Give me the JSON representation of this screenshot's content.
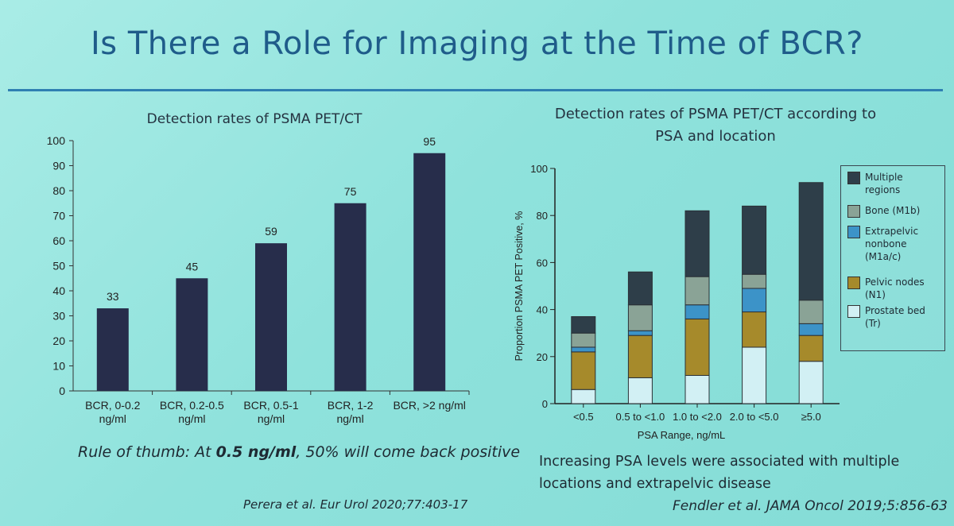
{
  "slide": {
    "title": "Is There a Role for Imaging at the Time of BCR?",
    "rule_of_thumb_prefix": "Rule of thumb: At ",
    "rule_of_thumb_bold": "0.5 ng/ml",
    "rule_of_thumb_suffix": ", 50% will come back positive",
    "right_note": "Increasing PSA levels were associated with multiple locations and extrapelvic disease",
    "left_citation": "Perera et al. Eur Urol 2020;77:403-17",
    "right_citation": "Fendler et al. JAMA Oncol 2019;5:856-63"
  },
  "chart_data": [
    {
      "type": "bar",
      "title": "Detection rates of PSMA PET/CT",
      "categories": [
        [
          "BCR, 0-0.2",
          "ng/ml"
        ],
        [
          "BCR, 0.2-0.5",
          "ng/ml"
        ],
        [
          "BCR, 0.5-1",
          "ng/ml"
        ],
        [
          "BCR, 1-2",
          "ng/ml"
        ],
        [
          "BCR, >2 ng/ml"
        ]
      ],
      "values": [
        33,
        45,
        59,
        75,
        95
      ],
      "data_labels": [
        "33",
        "45",
        "59",
        "75",
        "95"
      ],
      "xlabel": "",
      "ylabel": "",
      "ylim": [
        0,
        100
      ],
      "yticks": [
        0,
        10,
        20,
        30,
        40,
        50,
        60,
        70,
        80,
        90,
        100
      ],
      "bar_color": "#272d4b",
      "grid": false
    },
    {
      "type": "bar",
      "stacked": true,
      "title": "Detection rates of PSMA PET/CT according to PSA and location",
      "title_lines": [
        "Detection rates of PSMA PET/CT according to",
        "PSA and location"
      ],
      "categories": [
        "<0.5",
        "0.5 to <1.0",
        "1.0 to <2.0",
        "2.0 to <5.0",
        "≥5.0"
      ],
      "xlabel": "PSA Range, ng/mL",
      "ylabel": "Proportion PSMA PET Positive, %",
      "ylim": [
        0,
        100
      ],
      "yticks": [
        0,
        20,
        40,
        60,
        80,
        100
      ],
      "grid": false,
      "legend_position": "right",
      "series": [
        {
          "name": "Prostate bed (Tr)",
          "legend_lines": [
            "Prostate bed",
            "(Tr)"
          ],
          "color": "#d2f0f4",
          "values": [
            6,
            11,
            12,
            24,
            18
          ]
        },
        {
          "name": "Pelvic nodes (N1)",
          "legend_lines": [
            "Pelvic nodes",
            "(N1)"
          ],
          "color": "#a68a2b",
          "values": [
            16,
            18,
            24,
            15,
            11
          ]
        },
        {
          "name": "Extrapelvic nonbone (M1a/c)",
          "legend_lines": [
            "Extrapelvic",
            "nonbone",
            "(M1a/c)"
          ],
          "color": "#3c93c8",
          "values": [
            2,
            2,
            6,
            10,
            5
          ]
        },
        {
          "name": "Bone (M1b)",
          "legend_lines": [
            "Bone (M1b)"
          ],
          "color": "#8aa396",
          "values": [
            6,
            11,
            12,
            6,
            10
          ]
        },
        {
          "name": "Multiple regions",
          "legend_lines": [
            "Multiple",
            "regions"
          ],
          "color": "#2e3e49",
          "values": [
            7,
            14,
            28,
            29,
            50
          ]
        }
      ]
    }
  ]
}
